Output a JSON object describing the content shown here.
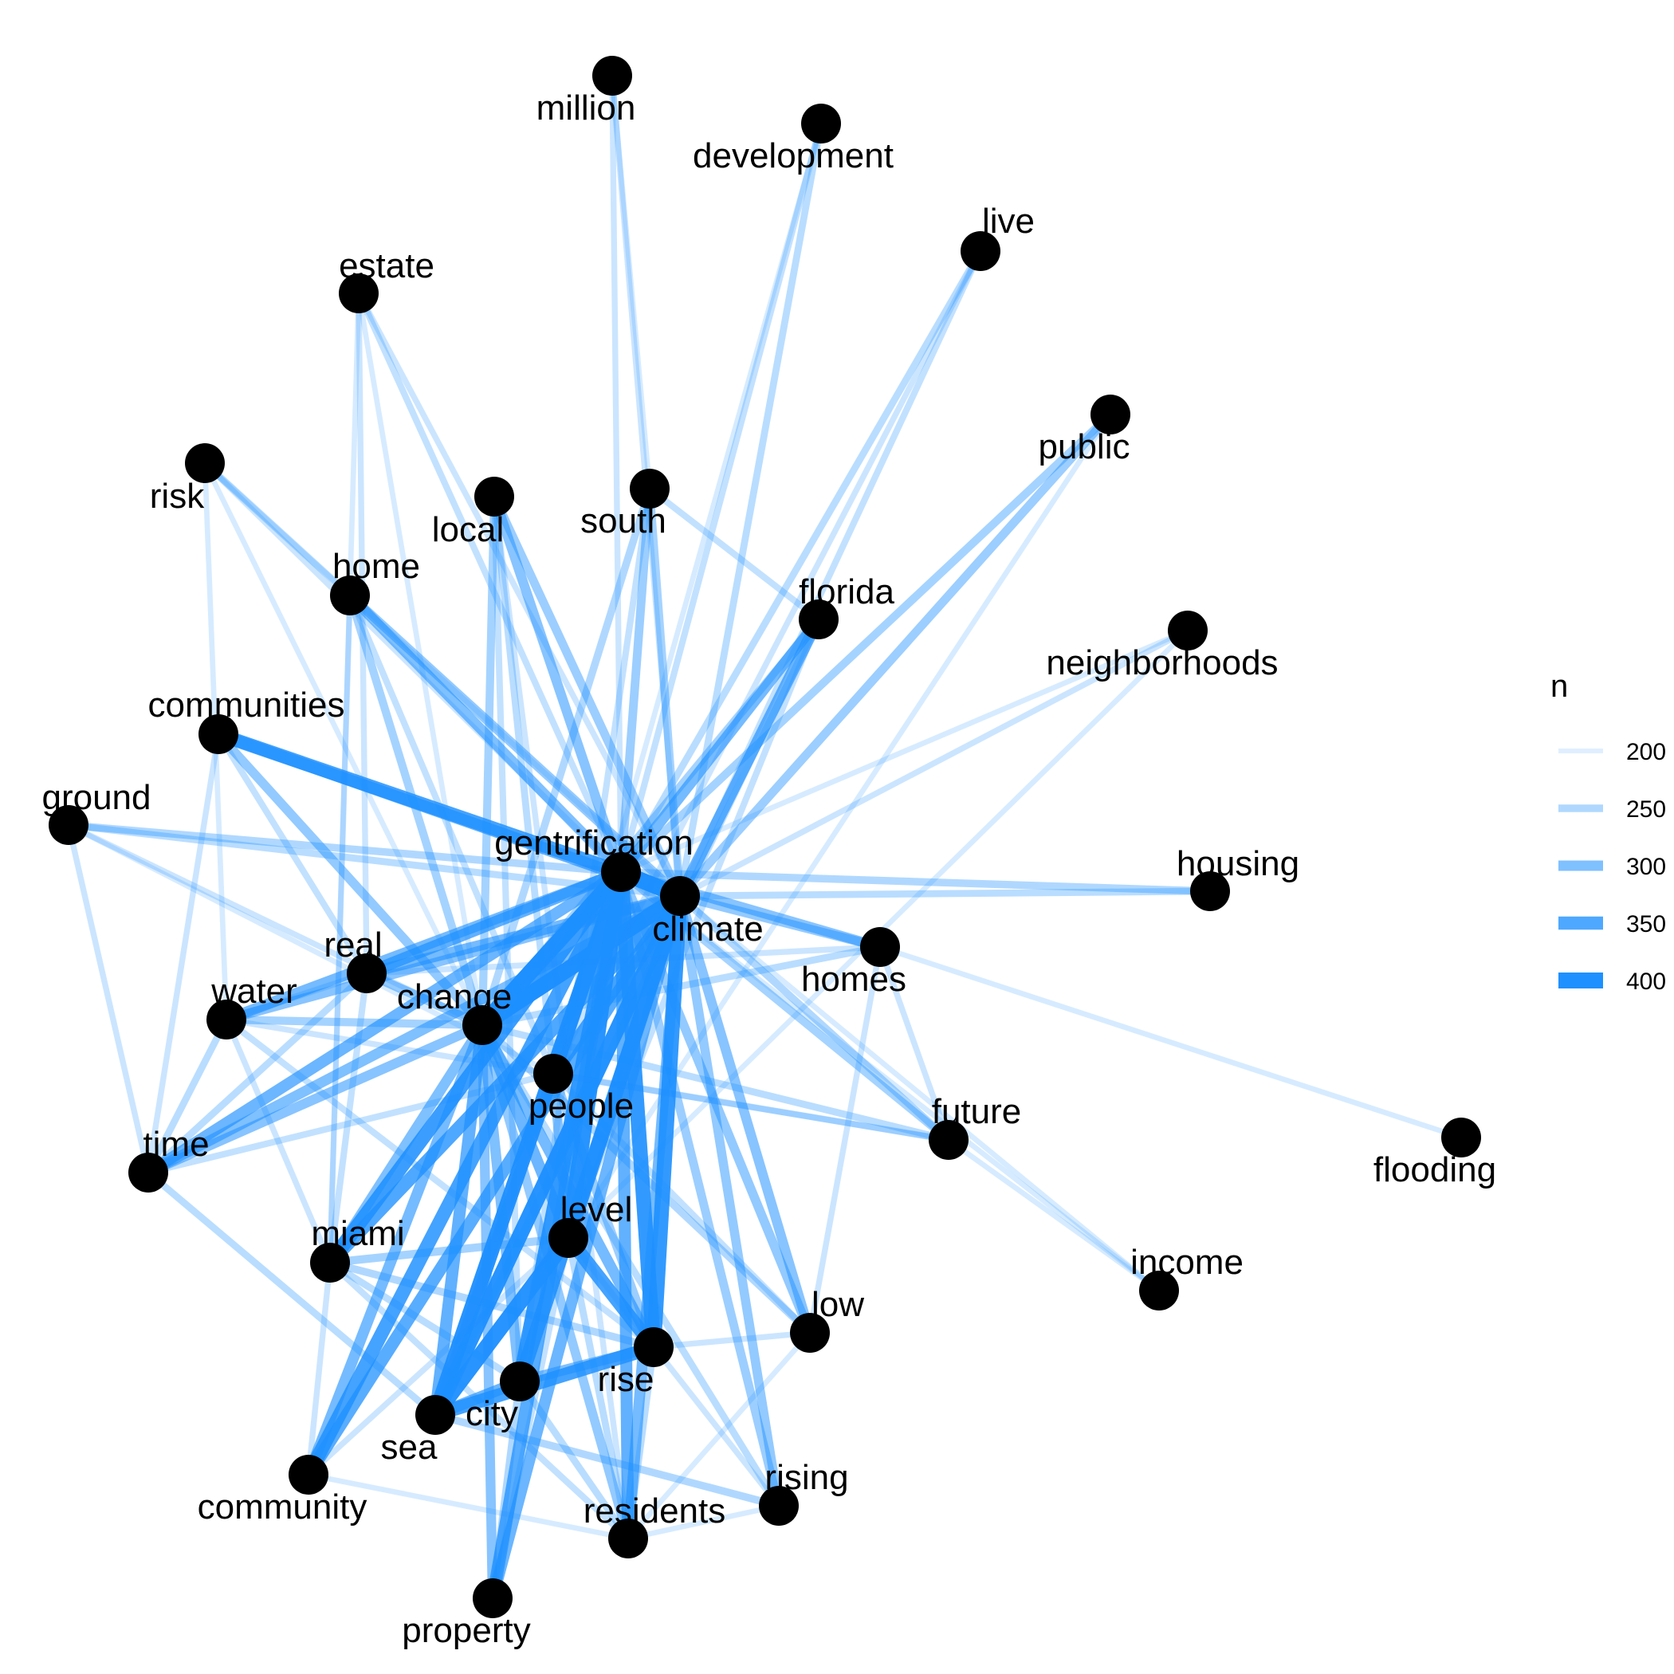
{
  "legend": {
    "title": "n",
    "items": [
      {
        "label": "200",
        "n": 200
      },
      {
        "label": "250",
        "n": 250
      },
      {
        "label": "300",
        "n": 300
      },
      {
        "label": "350",
        "n": 350
      },
      {
        "label": "400",
        "n": 400
      }
    ]
  },
  "edge_color": "#1E90FF",
  "node_color": "#000000",
  "nodes": [
    {
      "id": "million",
      "label": "million"
    },
    {
      "id": "development",
      "label": "development"
    },
    {
      "id": "live",
      "label": "live"
    },
    {
      "id": "estate",
      "label": "estate"
    },
    {
      "id": "public",
      "label": "public"
    },
    {
      "id": "risk",
      "label": "risk"
    },
    {
      "id": "local",
      "label": "local"
    },
    {
      "id": "south",
      "label": "south"
    },
    {
      "id": "home",
      "label": "home"
    },
    {
      "id": "florida",
      "label": "florida"
    },
    {
      "id": "neighborhoods",
      "label": "neighborhoods"
    },
    {
      "id": "communities",
      "label": "communities"
    },
    {
      "id": "ground",
      "label": "ground"
    },
    {
      "id": "gentrification",
      "label": "gentrification"
    },
    {
      "id": "climate",
      "label": "climate"
    },
    {
      "id": "housing",
      "label": "housing"
    },
    {
      "id": "homes",
      "label": "homes"
    },
    {
      "id": "real",
      "label": "real"
    },
    {
      "id": "water",
      "label": "water"
    },
    {
      "id": "change",
      "label": "change"
    },
    {
      "id": "people",
      "label": "people"
    },
    {
      "id": "time",
      "label": "time"
    },
    {
      "id": "future",
      "label": "future"
    },
    {
      "id": "flooding",
      "label": "flooding"
    },
    {
      "id": "level",
      "label": "level"
    },
    {
      "id": "miami",
      "label": "miami"
    },
    {
      "id": "income",
      "label": "income"
    },
    {
      "id": "low",
      "label": "low"
    },
    {
      "id": "rise",
      "label": "rise"
    },
    {
      "id": "city",
      "label": "city"
    },
    {
      "id": "sea",
      "label": "sea"
    },
    {
      "id": "community",
      "label": "community"
    },
    {
      "id": "rising",
      "label": "rising"
    },
    {
      "id": "residents",
      "label": "residents"
    },
    {
      "id": "property",
      "label": "property"
    }
  ],
  "edges": [
    {
      "source": "gentrification",
      "target": "climate",
      "n": 400
    },
    {
      "source": "gentrification",
      "target": "change",
      "n": 400
    },
    {
      "source": "climate",
      "target": "change",
      "n": 400
    },
    {
      "source": "gentrification",
      "target": "people",
      "n": 380
    },
    {
      "source": "climate",
      "target": "people",
      "n": 360
    },
    {
      "source": "gentrification",
      "target": "level",
      "n": 390
    },
    {
      "source": "climate",
      "target": "level",
      "n": 380
    },
    {
      "source": "gentrification",
      "target": "rise",
      "n": 380
    },
    {
      "source": "climate",
      "target": "rise",
      "n": 380
    },
    {
      "source": "gentrification",
      "target": "city",
      "n": 380
    },
    {
      "source": "climate",
      "target": "city",
      "n": 370
    },
    {
      "source": "gentrification",
      "target": "sea",
      "n": 390
    },
    {
      "source": "climate",
      "target": "sea",
      "n": 390
    },
    {
      "source": "gentrification",
      "target": "miami",
      "n": 370
    },
    {
      "source": "climate",
      "target": "miami",
      "n": 350
    },
    {
      "source": "gentrification",
      "target": "community",
      "n": 360
    },
    {
      "source": "climate",
      "target": "community",
      "n": 340
    },
    {
      "source": "gentrification",
      "target": "residents",
      "n": 330
    },
    {
      "source": "climate",
      "target": "residents",
      "n": 310
    },
    {
      "source": "gentrification",
      "target": "property",
      "n": 340
    },
    {
      "source": "climate",
      "target": "property",
      "n": 320
    },
    {
      "source": "gentrification",
      "target": "communities",
      "n": 360
    },
    {
      "source": "climate",
      "target": "communities",
      "n": 330
    },
    {
      "source": "gentrification",
      "target": "real",
      "n": 330
    },
    {
      "source": "climate",
      "target": "real",
      "n": 310
    },
    {
      "source": "gentrification",
      "target": "water",
      "n": 310
    },
    {
      "source": "climate",
      "target": "water",
      "n": 290
    },
    {
      "source": "gentrification",
      "target": "time",
      "n": 320
    },
    {
      "source": "climate",
      "target": "time",
      "n": 300
    },
    {
      "source": "gentrification",
      "target": "ground",
      "n": 250
    },
    {
      "source": "climate",
      "target": "ground",
      "n": 240
    },
    {
      "source": "gentrification",
      "target": "home",
      "n": 300
    },
    {
      "source": "climate",
      "target": "home",
      "n": 280
    },
    {
      "source": "gentrification",
      "target": "local",
      "n": 290
    },
    {
      "source": "climate",
      "target": "local",
      "n": 270
    },
    {
      "source": "gentrification",
      "target": "south",
      "n": 270
    },
    {
      "source": "climate",
      "target": "south",
      "n": 260
    },
    {
      "source": "gentrification",
      "target": "florida",
      "n": 310
    },
    {
      "source": "climate",
      "target": "florida",
      "n": 320
    },
    {
      "source": "gentrification",
      "target": "public",
      "n": 260
    },
    {
      "source": "climate",
      "target": "public",
      "n": 270
    },
    {
      "source": "gentrification",
      "target": "live",
      "n": 240
    },
    {
      "source": "climate",
      "target": "live",
      "n": 230
    },
    {
      "source": "gentrification",
      "target": "development",
      "n": 230
    },
    {
      "source": "climate",
      "target": "development",
      "n": 240
    },
    {
      "source": "gentrification",
      "target": "million",
      "n": 220
    },
    {
      "source": "climate",
      "target": "million",
      "n": 220
    },
    {
      "source": "gentrification",
      "target": "estate",
      "n": 230
    },
    {
      "source": "climate",
      "target": "estate",
      "n": 220
    },
    {
      "source": "gentrification",
      "target": "risk",
      "n": 220
    },
    {
      "source": "climate",
      "target": "risk",
      "n": 210
    },
    {
      "source": "gentrification",
      "target": "neighborhoods",
      "n": 210
    },
    {
      "source": "climate",
      "target": "neighborhoods",
      "n": 220
    },
    {
      "source": "gentrification",
      "target": "housing",
      "n": 250
    },
    {
      "source": "climate",
      "target": "housing",
      "n": 240
    },
    {
      "source": "gentrification",
      "target": "homes",
      "n": 290
    },
    {
      "source": "climate",
      "target": "homes",
      "n": 280
    },
    {
      "source": "gentrification",
      "target": "future",
      "n": 260
    },
    {
      "source": "climate",
      "target": "future",
      "n": 250
    },
    {
      "source": "gentrification",
      "target": "low",
      "n": 280
    },
    {
      "source": "climate",
      "target": "low",
      "n": 290
    },
    {
      "source": "gentrification",
      "target": "rising",
      "n": 270
    },
    {
      "source": "climate",
      "target": "rising",
      "n": 280
    },
    {
      "source": "gentrification",
      "target": "income",
      "n": 210
    },
    {
      "source": "climate",
      "target": "income",
      "n": 210
    },
    {
      "source": "sea",
      "target": "level",
      "n": 390
    },
    {
      "source": "level",
      "target": "rise",
      "n": 360
    },
    {
      "source": "sea",
      "target": "rise",
      "n": 360
    },
    {
      "source": "city",
      "target": "rise",
      "n": 300
    },
    {
      "source": "sea",
      "target": "city",
      "n": 320
    },
    {
      "source": "sea",
      "target": "rising",
      "n": 250
    },
    {
      "source": "change",
      "target": "sea",
      "n": 330
    },
    {
      "source": "change",
      "target": "level",
      "n": 320
    },
    {
      "source": "change",
      "target": "rise",
      "n": 310
    },
    {
      "source": "change",
      "target": "city",
      "n": 300
    },
    {
      "source": "change",
      "target": "miami",
      "n": 300
    },
    {
      "source": "change",
      "target": "community",
      "n": 310
    },
    {
      "source": "change",
      "target": "property",
      "n": 290
    },
    {
      "source": "change",
      "target": "residents",
      "n": 280
    },
    {
      "source": "change",
      "target": "real",
      "n": 280
    },
    {
      "source": "change",
      "target": "water",
      "n": 260
    },
    {
      "source": "change",
      "target": "time",
      "n": 290
    },
    {
      "source": "change",
      "target": "communities",
      "n": 280
    },
    {
      "source": "change",
      "target": "home",
      "n": 260
    },
    {
      "source": "change",
      "target": "local",
      "n": 260
    },
    {
      "source": "change",
      "target": "south",
      "n": 250
    },
    {
      "source": "change",
      "target": "florida",
      "n": 260
    },
    {
      "source": "change",
      "target": "future",
      "n": 240
    },
    {
      "source": "change",
      "target": "homes",
      "n": 240
    },
    {
      "source": "change",
      "target": "low",
      "n": 250
    },
    {
      "source": "change",
      "target": "rising",
      "n": 240
    },
    {
      "source": "change",
      "target": "ground",
      "n": 220
    },
    {
      "source": "change",
      "target": "estate",
      "n": 210
    },
    {
      "source": "change",
      "target": "risk",
      "n": 210
    },
    {
      "source": "people",
      "target": "level",
      "n": 290
    },
    {
      "source": "people",
      "target": "sea",
      "n": 290
    },
    {
      "source": "people",
      "target": "rise",
      "n": 270
    },
    {
      "source": "people",
      "target": "future",
      "n": 230
    },
    {
      "source": "people",
      "target": "low",
      "n": 230
    },
    {
      "source": "real",
      "target": "estate",
      "n": 220
    },
    {
      "source": "real",
      "target": "water",
      "n": 230
    },
    {
      "source": "real",
      "target": "time",
      "n": 240
    },
    {
      "source": "real",
      "target": "miami",
      "n": 230
    },
    {
      "source": "real",
      "target": "homes",
      "n": 220
    },
    {
      "source": "water",
      "target": "time",
      "n": 240
    },
    {
      "source": "water",
      "target": "miami",
      "n": 220
    },
    {
      "source": "water",
      "target": "rise",
      "n": 230
    },
    {
      "source": "water",
      "target": "future",
      "n": 220
    },
    {
      "source": "time",
      "target": "people",
      "n": 230
    },
    {
      "source": "time",
      "target": "sea",
      "n": 240
    },
    {
      "source": "miami",
      "target": "level",
      "n": 260
    },
    {
      "source": "miami",
      "target": "rise",
      "n": 250
    },
    {
      "source": "miami",
      "target": "city",
      "n": 240
    },
    {
      "source": "miami",
      "target": "residents",
      "n": 230
    },
    {
      "source": "miami",
      "target": "community",
      "n": 220
    },
    {
      "source": "community",
      "target": "residents",
      "n": 210
    },
    {
      "source": "community",
      "target": "level",
      "n": 220
    },
    {
      "source": "rise",
      "target": "low",
      "n": 220
    },
    {
      "source": "rise",
      "target": "residents",
      "n": 240
    },
    {
      "source": "level",
      "target": "residents",
      "n": 240
    },
    {
      "source": "level",
      "target": "rising",
      "n": 220
    },
    {
      "source": "level",
      "target": "property",
      "n": 230
    },
    {
      "source": "city",
      "target": "property",
      "n": 250
    },
    {
      "source": "city",
      "target": "residents",
      "n": 240
    },
    {
      "source": "low",
      "target": "residents",
      "n": 210
    },
    {
      "source": "low",
      "target": "homes",
      "n": 220
    },
    {
      "source": "homes",
      "target": "flooding",
      "n": 210
    },
    {
      "source": "homes",
      "target": "future",
      "n": 220
    },
    {
      "source": "future",
      "target": "income",
      "n": 210
    },
    {
      "source": "communities",
      "target": "time",
      "n": 220
    },
    {
      "source": "communities",
      "target": "real",
      "n": 230
    },
    {
      "source": "home",
      "target": "risk",
      "n": 240
    },
    {
      "source": "home",
      "target": "miami",
      "n": 220
    },
    {
      "source": "home",
      "target": "people",
      "n": 230
    },
    {
      "source": "local",
      "target": "people",
      "n": 240
    },
    {
      "source": "local",
      "target": "city",
      "n": 230
    },
    {
      "source": "local",
      "target": "residents",
      "n": 220
    },
    {
      "source": "south",
      "target": "florida",
      "n": 230
    },
    {
      "source": "south",
      "target": "city",
      "n": 230
    },
    {
      "source": "south",
      "target": "million",
      "n": 210
    },
    {
      "source": "florida",
      "target": "sea",
      "n": 240
    },
    {
      "source": "florida",
      "target": "level",
      "n": 230
    },
    {
      "source": "public",
      "target": "level",
      "n": 210
    },
    {
      "source": "live",
      "target": "people",
      "n": 220
    },
    {
      "source": "development",
      "target": "people",
      "n": 210
    },
    {
      "source": "estate",
      "target": "miami",
      "n": 210
    },
    {
      "source": "risk",
      "target": "water",
      "n": 210
    },
    {
      "source": "ground",
      "target": "time",
      "n": 220
    },
    {
      "source": "ground",
      "target": "people",
      "n": 210
    },
    {
      "source": "neighborhoods",
      "target": "level",
      "n": 210
    },
    {
      "source": "rising",
      "target": "residents",
      "n": 210
    }
  ]
}
